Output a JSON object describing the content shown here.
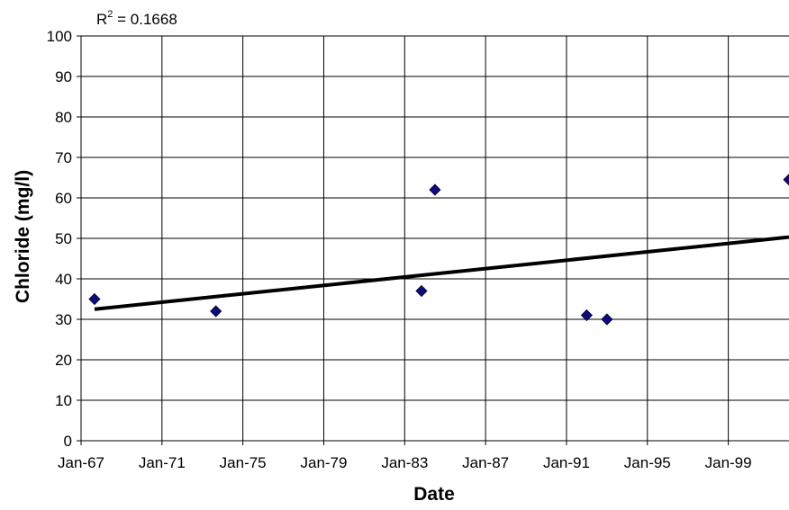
{
  "chart_data": {
    "type": "scatter",
    "title": "",
    "xlabel": "Date",
    "ylabel": "Chloride (mg/l)",
    "annotation": {
      "prefix": "R",
      "sup": "2",
      "suffix": " = 0.1668"
    },
    "x_ticks": [
      "Jan-67",
      "Jan-71",
      "Jan-75",
      "Jan-79",
      "Jan-83",
      "Jan-87",
      "Jan-91",
      "Jan-95",
      "Jan-99"
    ],
    "xlim": [
      "1967-01-01",
      "2002-01-01"
    ],
    "ylim": [
      0,
      100
    ],
    "y_ticks": [
      0,
      10,
      20,
      30,
      40,
      50,
      60,
      70,
      80,
      90,
      100
    ],
    "grid": true,
    "legend": "none",
    "series": [
      {
        "marker": "diamond",
        "color": "#0a0a8c",
        "points": [
          {
            "x": "1967-09-01",
            "y": 35
          },
          {
            "x": "1973-09-01",
            "y": 32
          },
          {
            "x": "1983-11-01",
            "y": 37
          },
          {
            "x": "1984-07-01",
            "y": 62
          },
          {
            "x": "1992-01-01",
            "y": 31
          },
          {
            "x": "1993-01-01",
            "y": 30
          },
          {
            "x": "2002-01-01",
            "y": 64.5
          }
        ]
      }
    ],
    "trendline": {
      "type": "linear",
      "color": "#000000",
      "points": [
        {
          "x": "1967-09-01",
          "y": 32.5
        },
        {
          "x": "2002-01-01",
          "y": 50.3
        }
      ]
    }
  }
}
